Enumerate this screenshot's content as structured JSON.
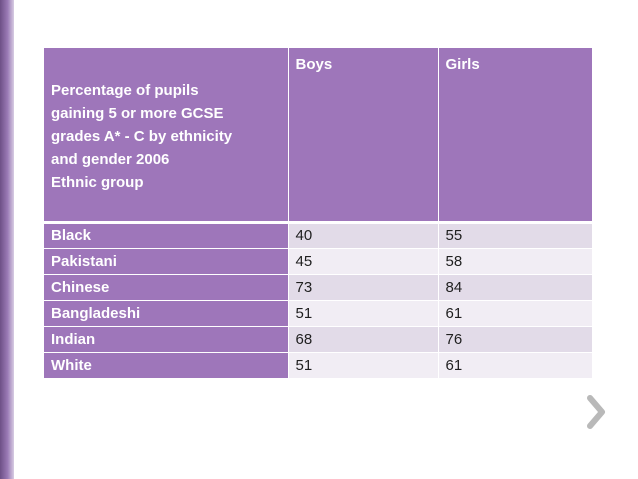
{
  "table": {
    "header": {
      "first_lines": [
        "Percentage of pupils",
        "gaining 5 or more GCSE",
        "grades A* - C by ethnicity",
        "and gender 2006",
        "Ethnic group"
      ],
      "boys": "Boys",
      "girls": "Girls"
    },
    "rows": [
      {
        "group": "Black",
        "boys": "40",
        "girls": "55"
      },
      {
        "group": "Pakistani",
        "boys": "45",
        "girls": "58"
      },
      {
        "group": "Chinese",
        "boys": "73",
        "girls": "84"
      },
      {
        "group": "Bangladeshi",
        "boys": "51",
        "girls": "61"
      },
      {
        "group": "Indian",
        "boys": "68",
        "girls": "76"
      },
      {
        "group": "White",
        "boys": "51",
        "girls": "61"
      }
    ]
  },
  "icons": {
    "next": "chevron-right-icon"
  },
  "colors": {
    "header_purple": "#9e76ba",
    "row_light": "#e2dbe8",
    "row_lighter": "#f1edf4",
    "chevron": "#b9b9b9"
  }
}
